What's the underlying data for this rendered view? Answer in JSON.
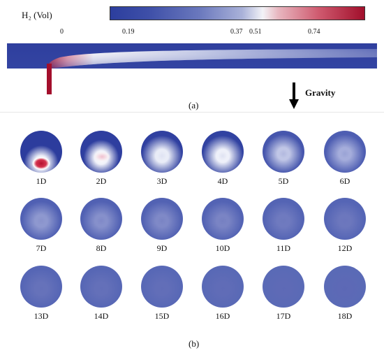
{
  "colorbar": {
    "variable_label": "H₂ (Vol)",
    "ticks": [
      "0",
      "0.19",
      "0.37",
      "0.51",
      "0.74"
    ]
  },
  "panel_a": {
    "label": "(a)"
  },
  "gravity": {
    "label": "Gravity"
  },
  "panel_b": {
    "label": "(b)",
    "sections": [
      {
        "label": "1D",
        "center": "#ffffff",
        "core": "#c8233f",
        "edge": "#2c3c9d"
      },
      {
        "label": "2D",
        "center": "#f6eaf0",
        "core": "#f0c8d4",
        "edge": "#2e3e9f"
      },
      {
        "label": "3D",
        "center": "#e9ecf7",
        "core": "#dfe3f3",
        "edge": "#3040a0"
      },
      {
        "label": "4D",
        "center": "#eef0f9",
        "core": "#dfe2f2",
        "edge": "#3142a1"
      },
      {
        "label": "5D",
        "center": "#c0c6e6",
        "core": "#b2b9df",
        "edge": "#4656ad"
      },
      {
        "label": "6D",
        "center": "#a5addb",
        "core": "#9aa3d5",
        "edge": "#4e5eb2"
      },
      {
        "label": "7D",
        "center": "#8e98cf",
        "core": "#8a93cc",
        "edge": "#5060b3"
      },
      {
        "label": "8D",
        "center": "#8690cb",
        "core": "#8089c8",
        "edge": "#5161b3"
      },
      {
        "label": "9D",
        "center": "#7f89c7",
        "core": "#7a84c4",
        "edge": "#5262b3"
      },
      {
        "label": "10D",
        "center": "#7a84c4",
        "core": "#7680c2",
        "edge": "#5363b4"
      },
      {
        "label": "11D",
        "center": "#6f7abf",
        "core": "#6e79be",
        "edge": "#5464b4"
      },
      {
        "label": "12D",
        "center": "#6c77bd",
        "core": "#6b76bd",
        "edge": "#5565b5"
      },
      {
        "label": "13D",
        "center": "#6672ba",
        "core": "#6571ba",
        "edge": "#5666b5"
      },
      {
        "label": "14D",
        "center": "#6470b9",
        "core": "#636fb9",
        "edge": "#5767b5"
      },
      {
        "label": "15D",
        "center": "#626eb8",
        "core": "#616db8",
        "edge": "#5868b6"
      },
      {
        "label": "16D",
        "center": "#606cb7",
        "core": "#5f6bb7",
        "edge": "#5969b6"
      },
      {
        "label": "17D",
        "center": "#5e6ab6",
        "core": "#5d69b6",
        "edge": "#5a6ab6"
      },
      {
        "label": "18D",
        "center": "#5d69b6",
        "core": "#5c68b5",
        "edge": "#5a6ab6"
      }
    ]
  }
}
